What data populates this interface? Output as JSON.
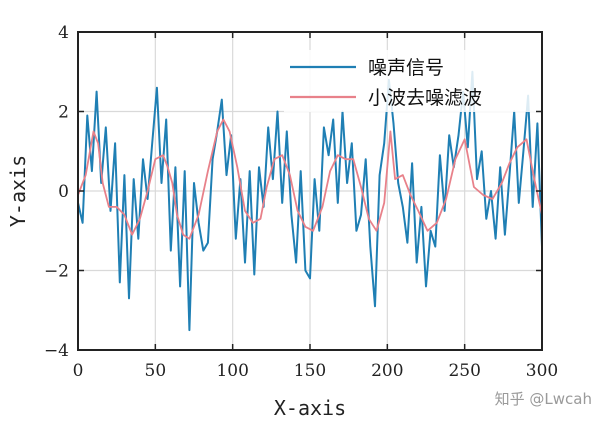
{
  "chart_data": {
    "type": "line",
    "title": "",
    "xlabel": "X-axis",
    "ylabel": "Y-axis",
    "xlim": [
      0,
      300
    ],
    "ylim": [
      -4,
      4
    ],
    "xticks": [
      0,
      50,
      100,
      150,
      200,
      250,
      300
    ],
    "yticks": [
      -4,
      -2,
      0,
      2,
      4
    ],
    "grid": true,
    "legend_position": "top-right",
    "watermark": "知乎 @Lwcah",
    "series": [
      {
        "name": "噪声信号",
        "color": "#1f7fb4",
        "x": [
          0,
          3,
          6,
          9,
          12,
          15,
          18,
          21,
          24,
          27,
          30,
          33,
          36,
          39,
          42,
          45,
          48,
          51,
          54,
          57,
          60,
          63,
          66,
          69,
          72,
          75,
          78,
          81,
          84,
          87,
          90,
          93,
          96,
          99,
          102,
          105,
          108,
          111,
          114,
          117,
          120,
          123,
          126,
          129,
          132,
          135,
          138,
          141,
          144,
          147,
          150,
          153,
          156,
          159,
          162,
          165,
          168,
          171,
          174,
          177,
          180,
          183,
          186,
          189,
          192,
          195,
          198,
          201,
          204,
          207,
          210,
          213,
          216,
          219,
          222,
          225,
          228,
          231,
          234,
          237,
          240,
          243,
          246,
          249,
          252,
          255,
          258,
          261,
          264,
          267,
          270,
          273,
          276,
          279,
          282,
          285,
          288,
          291,
          294,
          297,
          300
        ],
        "y": [
          -0.3,
          -0.8,
          1.9,
          0.5,
          2.5,
          0.2,
          1.6,
          -0.5,
          1.2,
          -2.3,
          0.4,
          -2.7,
          0.3,
          -1.2,
          0.8,
          -0.2,
          1.2,
          2.6,
          0.2,
          1.8,
          -1.5,
          0.6,
          -2.4,
          0.5,
          -3.5,
          0.2,
          -0.8,
          -1.5,
          -1.3,
          0.8,
          1.5,
          2.3,
          0.4,
          1.4,
          -1.2,
          0.3,
          -1.8,
          0.5,
          -2.1,
          0.6,
          -0.4,
          1.6,
          0.3,
          2.0,
          -0.3,
          1.5,
          -0.6,
          -1.8,
          0.5,
          -2.0,
          -2.2,
          0.3,
          -1.0,
          1.6,
          0.9,
          1.8,
          -0.3,
          2.0,
          0.2,
          1.2,
          -1.0,
          -0.6,
          0.8,
          -1.4,
          -2.9,
          0.4,
          1.2,
          2.8,
          1.7,
          0.2,
          -0.4,
          -1.3,
          0.7,
          -1.8,
          -0.4,
          -2.4,
          -1.0,
          -1.4,
          0.9,
          -0.5,
          1.4,
          0.6,
          1.4,
          2.5,
          1.1,
          3.0,
          0.3,
          1.0,
          -0.7,
          0.0,
          -1.2,
          0.6,
          -1.1,
          0.4,
          2.0,
          -0.3,
          1.0,
          2.4,
          -0.4,
          1.7,
          -1.4
        ]
      },
      {
        "name": "小波去噪滤波",
        "color": "#e8818a",
        "x": [
          0,
          5,
          10,
          13,
          16,
          20,
          25,
          30,
          35,
          40,
          45,
          50,
          55,
          58,
          61,
          64,
          68,
          72,
          78,
          84,
          90,
          94,
          98,
          103,
          108,
          113,
          118,
          122,
          127,
          132,
          137,
          142,
          147,
          152,
          158,
          163,
          168,
          173,
          178,
          183,
          188,
          193,
          198,
          202,
          205,
          210,
          215,
          220,
          226,
          232,
          238,
          244,
          250,
          256,
          262,
          268,
          274,
          279,
          284,
          290,
          295,
          300
        ],
        "y": [
          -0.1,
          0.4,
          1.5,
          1.2,
          0.2,
          -0.4,
          -0.4,
          -0.6,
          -1.1,
          -0.7,
          0.0,
          0.8,
          0.9,
          0.6,
          0.2,
          -0.6,
          -1.1,
          -1.2,
          -0.6,
          0.5,
          1.5,
          1.8,
          1.5,
          0.6,
          -0.5,
          -0.8,
          -0.7,
          0.1,
          0.8,
          0.9,
          0.4,
          -0.5,
          -0.9,
          -1.0,
          -0.4,
          0.5,
          0.9,
          0.8,
          0.8,
          0.1,
          -0.7,
          -1.0,
          -0.3,
          1.5,
          0.3,
          0.4,
          -0.1,
          -0.5,
          -1.0,
          -0.8,
          -0.2,
          0.8,
          1.3,
          0.1,
          -0.1,
          -0.2,
          0.2,
          0.7,
          1.1,
          1.3,
          0.3,
          -0.6
        ]
      }
    ]
  }
}
